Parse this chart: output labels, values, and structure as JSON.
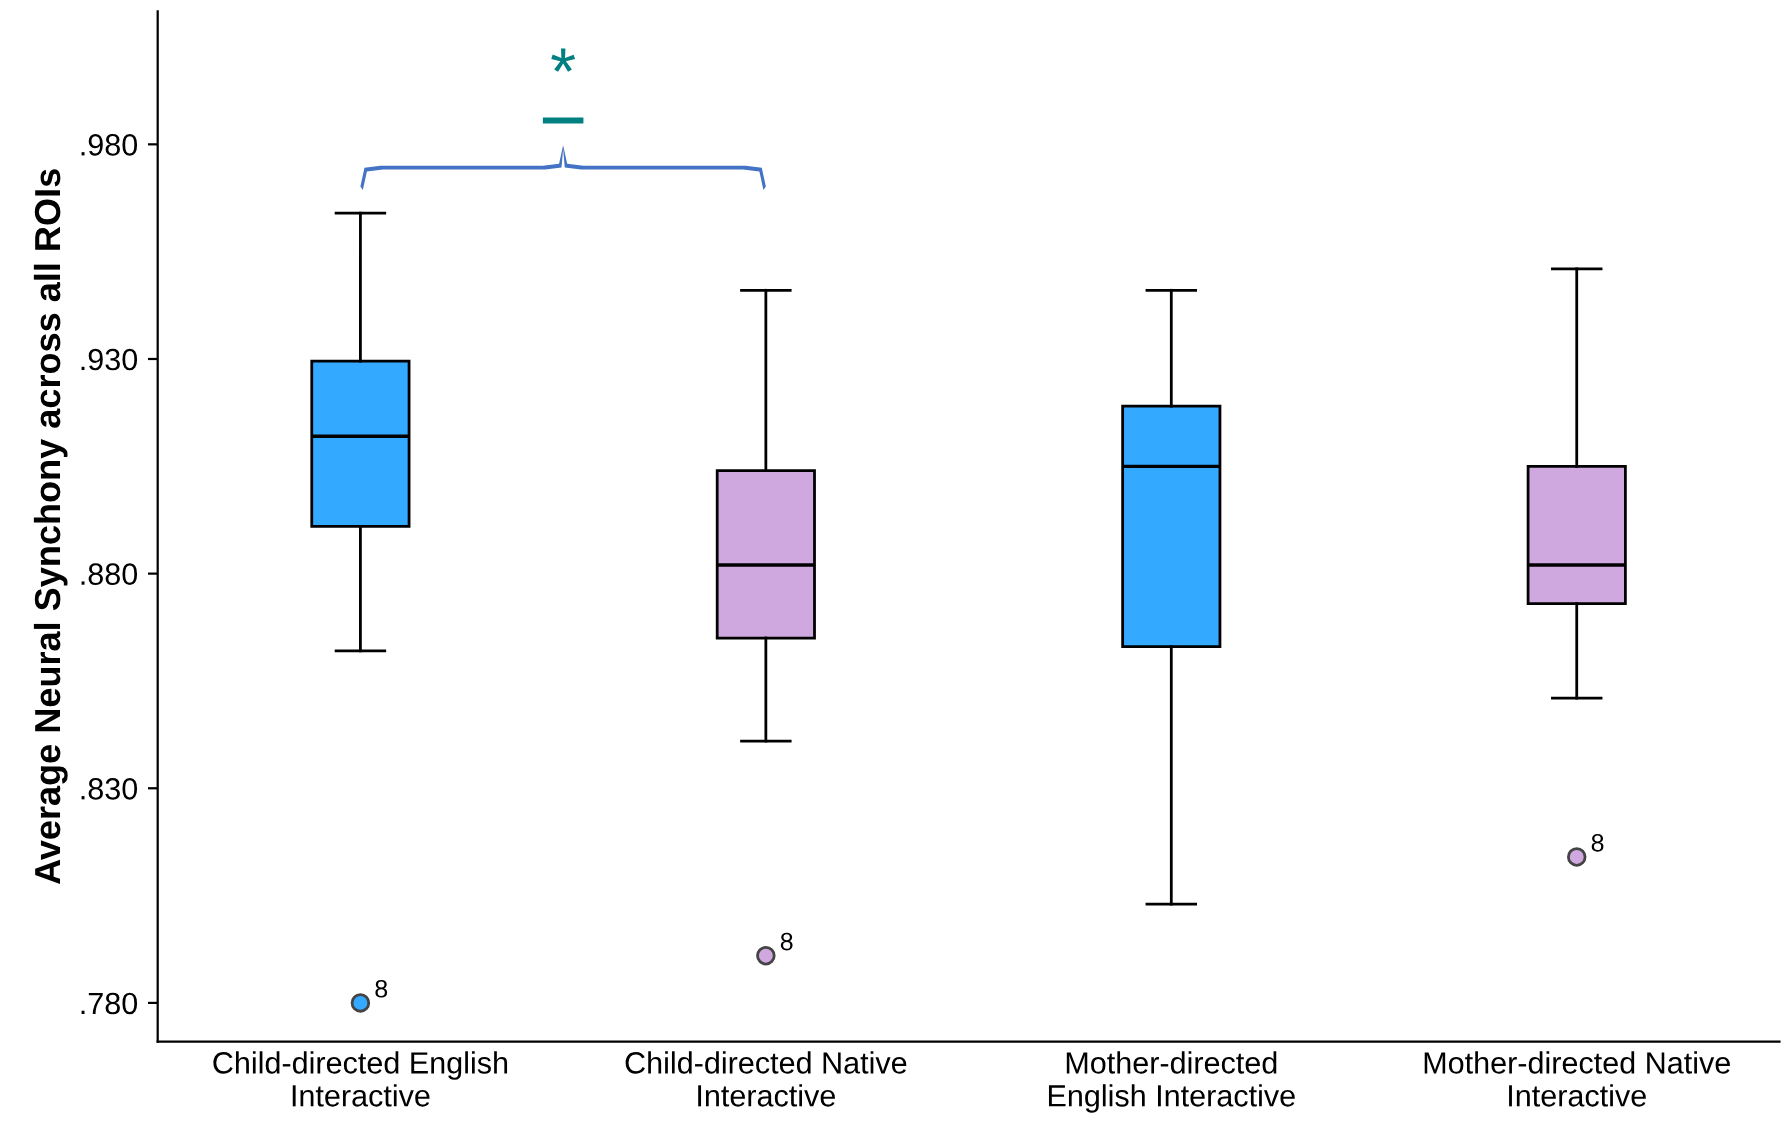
{
  "chart_data": {
    "type": "box",
    "ylabel": "Average Neural Synchony across all ROIs",
    "categories": [
      "Child-directed English\nInteractive",
      "Child-directed Native\nInteractive",
      "Mother-directed\nEnglish Interactive",
      "Mother-directed Native\nInteractive"
    ],
    "colors": [
      "#33aaff",
      "#d0a8e0",
      "#33aaff",
      "#d0a8e0"
    ],
    "boxes": [
      {
        "low": 0.862,
        "q1": 0.891,
        "median": 0.912,
        "q3": 0.9295,
        "high": 0.964,
        "outliers": [
          0.78
        ]
      },
      {
        "low": 0.841,
        "q1": 0.865,
        "median": 0.882,
        "q3": 0.904,
        "high": 0.946,
        "outliers": [
          0.791
        ]
      },
      {
        "low": 0.803,
        "q1": 0.863,
        "median": 0.905,
        "q3": 0.919,
        "high": 0.946
      },
      {
        "low": 0.851,
        "q1": 0.873,
        "median": 0.882,
        "q3": 0.905,
        "high": 0.951,
        "outliers": [
          0.814
        ]
      }
    ],
    "ylim": [
      0.771,
      1.011
    ],
    "yticks": [
      {
        "value": 0.78,
        "label": ".780"
      },
      {
        "value": 0.83,
        "label": ".830"
      },
      {
        "value": 0.88,
        "label": ".880"
      },
      {
        "value": 0.93,
        "label": ".930"
      },
      {
        "value": 0.98,
        "label": ".980"
      }
    ],
    "grid": false,
    "annotations": [
      "8",
      "8",
      "8",
      "*"
    ]
  }
}
